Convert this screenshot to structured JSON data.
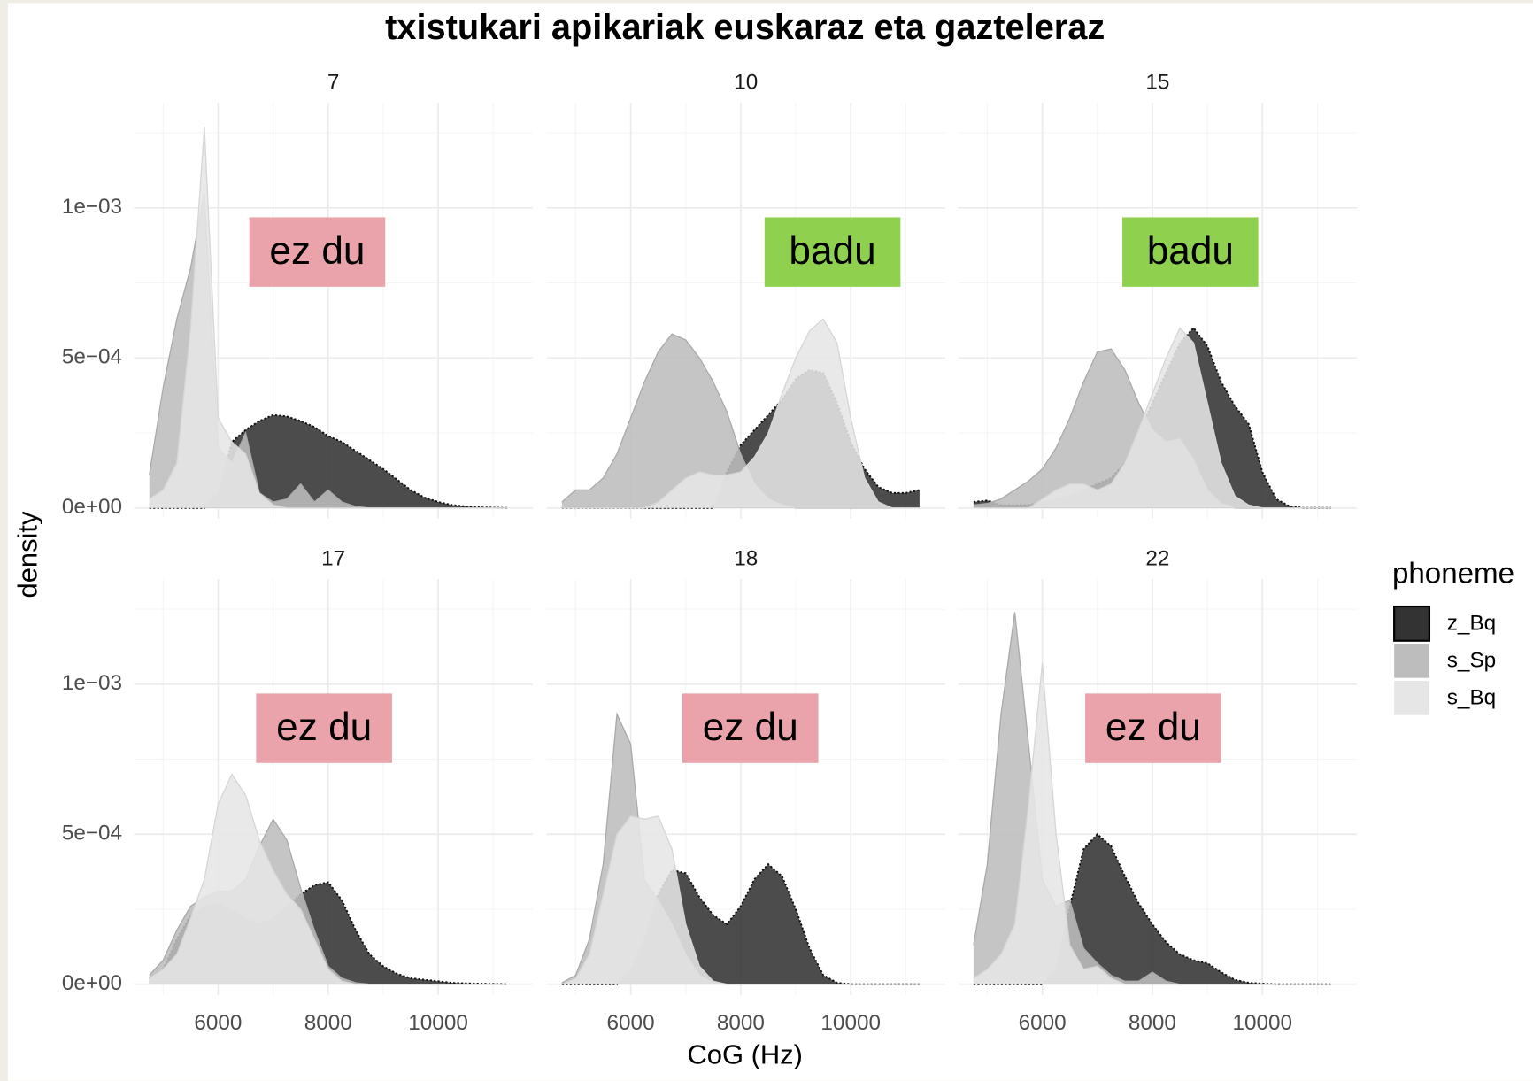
{
  "title": "txistukari apikariak euskaraz eta gazteleraz",
  "xlabel": "CoG (Hz)",
  "ylabel": "density",
  "legend_title": "phoneme",
  "chart_data": [
    {
      "type": "area",
      "title": "7",
      "annotation": {
        "text": "ez du",
        "color": "#eaa3aa"
      },
      "x": [
        4750,
        5000,
        5250,
        5500,
        5750,
        6000,
        6250,
        6500,
        6750,
        7000,
        7250,
        7500,
        7750,
        8000,
        8250,
        8500,
        8750,
        9000,
        9250,
        9500,
        9750,
        10000,
        10250,
        10500,
        10750,
        11000,
        11250
      ],
      "series": [
        {
          "name": "z_Bq",
          "color": "#333333",
          "values": [
            0,
            0,
            0,
            0,
            0,
            5e-05,
            0.00022,
            0.00026,
            0.00029,
            0.00031,
            0.000305,
            0.00029,
            0.00027,
            0.00024,
            0.00022,
            0.00019,
            0.00016,
            0.00013,
            9.5e-05,
            6e-05,
            3.5e-05,
            2e-05,
            1e-05,
            5e-06,
            2e-06,
            1e-06,
            0
          ]
        },
        {
          "name": "s_Sp",
          "color": "#bdbdbd",
          "values": [
            0.00011,
            0.0004,
            0.00063,
            0.0008,
            0.00105,
            0.0002,
            0.00015,
            0.00025,
            5e-05,
            2e-05,
            3e-05,
            8e-05,
            2e-05,
            6e-05,
            2e-05,
            5e-06,
            0,
            0,
            0,
            0,
            0,
            0,
            0,
            0,
            0,
            0,
            0
          ]
        },
        {
          "name": "s_Bq",
          "color": "#e6e6e6",
          "values": [
            3e-05,
            6e-05,
            0.00015,
            0.0006,
            0.00127,
            0.0003,
            0.00022,
            0.00018,
            5e-05,
            1e-05,
            0,
            0,
            0,
            0,
            0,
            0,
            0,
            0,
            0,
            0,
            0,
            0,
            0,
            0,
            0,
            0,
            0
          ]
        }
      ],
      "xlim": [
        4470,
        11720
      ],
      "ylim": [
        -3.5e-05,
        0.00135
      ],
      "xticks": [
        6000,
        8000,
        10000
      ],
      "xminor": [
        5000,
        7000,
        9000,
        11000
      ],
      "yticks": [
        {
          "value": 0,
          "label": "0e+00"
        },
        {
          "value": 0.0005,
          "label": "5e−04"
        },
        {
          "value": 0.001,
          "label": "1e−03"
        }
      ],
      "yminor": [
        0.00025,
        0.00075,
        0.00125
      ],
      "grid": true
    },
    {
      "type": "area",
      "title": "10",
      "annotation": {
        "text": "badu",
        "color": "#8fd14f"
      },
      "x": [
        4750,
        5000,
        5250,
        5500,
        5750,
        6000,
        6250,
        6500,
        6750,
        7000,
        7250,
        7500,
        7750,
        8000,
        8250,
        8500,
        8750,
        9000,
        9250,
        9500,
        9750,
        10000,
        10250,
        10500,
        10750,
        11000,
        11250
      ],
      "series": [
        {
          "name": "z_Bq",
          "color": "#333333",
          "values": [
            0,
            0,
            0,
            0,
            0,
            0,
            0,
            0,
            0,
            0,
            0,
            0,
            0.00012,
            0.00021,
            0.00026,
            0.00031,
            0.00036,
            0.00043,
            0.00046,
            0.00045,
            0.00035,
            0.00022,
            0.00013,
            7e-05,
            5e-05,
            5e-05,
            6e-05
          ]
        },
        {
          "name": "s_Sp",
          "color": "#bdbdbd",
          "values": [
            2e-05,
            6e-05,
            6e-05,
            0.0001,
            0.00018,
            0.0003,
            0.00042,
            0.00052,
            0.00058,
            0.00056,
            0.0005,
            0.00042,
            0.00032,
            0.00018,
            8e-05,
            3e-05,
            1e-05,
            0,
            0,
            0,
            0,
            0,
            0,
            0,
            0,
            0,
            0
          ]
        },
        {
          "name": "s_Bq",
          "color": "#e6e6e6",
          "values": [
            0,
            0,
            0,
            0,
            0,
            0,
            0,
            2e-05,
            6e-05,
            0.0001,
            0.00012,
            0.00011,
            0.00011,
            0.00012,
            0.00017,
            0.00025,
            0.00038,
            0.0005,
            0.00059,
            0.00063,
            0.00055,
            0.0003,
            0.0001,
            2e-05,
            0,
            0,
            0
          ]
        }
      ],
      "xlim": [
        4470,
        11720
      ],
      "ylim": [
        -3.5e-05,
        0.00135
      ],
      "xticks": [
        6000,
        8000,
        10000
      ],
      "xminor": [
        5000,
        7000,
        9000,
        11000
      ],
      "yticks": [
        {
          "value": 0,
          "label": "0e+00"
        },
        {
          "value": 0.0005,
          "label": "5e−04"
        },
        {
          "value": 0.001,
          "label": "1e−03"
        }
      ],
      "yminor": [
        0.00025,
        0.00075,
        0.00125
      ],
      "grid": true
    },
    {
      "type": "area",
      "title": "15",
      "annotation": {
        "text": "badu",
        "color": "#8fd14f"
      },
      "x": [
        4750,
        5000,
        5250,
        5500,
        5750,
        6000,
        6250,
        6500,
        6750,
        7000,
        7250,
        7500,
        7750,
        8000,
        8250,
        8500,
        8750,
        9000,
        9250,
        9500,
        9750,
        10000,
        10250,
        10500,
        10750,
        11000,
        11250
      ],
      "series": [
        {
          "name": "z_Bq",
          "color": "#333333",
          "values": [
            2e-05,
            2.5e-05,
            1e-05,
            1e-05,
            1e-05,
            2e-05,
            3e-05,
            4e-05,
            6e-05,
            8e-05,
            0.0001,
            0.00015,
            0.00025,
            0.00035,
            0.00045,
            0.00055,
            0.0006,
            0.00054,
            0.00042,
            0.00034,
            0.00028,
            0.00012,
            3e-05,
            5e-06,
            0,
            0,
            0
          ]
        },
        {
          "name": "s_Sp",
          "color": "#bdbdbd",
          "values": [
            1e-05,
            1.5e-05,
            3e-05,
            6e-05,
            9e-05,
            0.00013,
            0.0002,
            0.0003,
            0.00042,
            0.00052,
            0.00053,
            0.00046,
            0.00035,
            0.00026,
            0.00022,
            0.00023,
            0.00016,
            6e-05,
            1.5e-05,
            0,
            0,
            0,
            0,
            0,
            0,
            0,
            0
          ]
        },
        {
          "name": "s_Bq",
          "color": "#e6e6e6",
          "values": [
            0,
            0,
            0,
            0,
            0,
            3e-05,
            6e-05,
            8e-05,
            8e-05,
            6e-05,
            8e-05,
            0.00015,
            0.00026,
            0.00038,
            0.0005,
            0.0006,
            0.00055,
            0.00035,
            0.00015,
            4e-05,
            1e-05,
            0,
            0,
            0,
            0,
            0,
            0
          ]
        }
      ],
      "xlim": [
        4470,
        11720
      ],
      "ylim": [
        -3.5e-05,
        0.00135
      ],
      "xticks": [
        6000,
        8000,
        10000
      ],
      "xminor": [
        5000,
        7000,
        9000,
        11000
      ],
      "yticks": [
        {
          "value": 0,
          "label": "0e+00"
        },
        {
          "value": 0.0005,
          "label": "5e−04"
        },
        {
          "value": 0.001,
          "label": "1e−03"
        }
      ],
      "yminor": [
        0.00025,
        0.00075,
        0.00125
      ],
      "grid": true
    },
    {
      "type": "area",
      "title": "17",
      "annotation": {
        "text": "ez du",
        "color": "#eaa3aa"
      },
      "x": [
        4750,
        5000,
        5250,
        5500,
        5750,
        6000,
        6250,
        6500,
        6750,
        7000,
        7250,
        7500,
        7750,
        8000,
        8250,
        8500,
        8750,
        9000,
        9250,
        9500,
        9750,
        10000,
        10250,
        10500,
        10750,
        11000,
        11250
      ],
      "series": [
        {
          "name": "z_Bq",
          "color": "#333333",
          "values": [
            2e-05,
            5e-05,
            0.00015,
            0.00023,
            0.00026,
            0.00027,
            0.00025,
            0.00022,
            0.0002,
            0.00022,
            0.00026,
            0.0003,
            0.00033,
            0.00034,
            0.00028,
            0.00018,
            0.0001,
            6e-05,
            3.5e-05,
            2e-05,
            1.5e-05,
            1e-05,
            5e-06,
            3e-06,
            2e-06,
            1e-06,
            0
          ]
        },
        {
          "name": "s_Sp",
          "color": "#bdbdbd",
          "values": [
            3e-05,
            8e-05,
            0.00018,
            0.00026,
            0.00029,
            0.00031,
            0.00031,
            0.00035,
            0.00046,
            0.00055,
            0.00048,
            0.00032,
            0.00018,
            6e-05,
            2e-05,
            5e-06,
            0,
            0,
            0,
            0,
            0,
            0,
            0,
            0,
            0,
            0,
            0
          ]
        },
        {
          "name": "s_Bq",
          "color": "#e6e6e6",
          "values": [
            2e-05,
            5e-05,
            0.0001,
            0.00022,
            0.00035,
            0.0006,
            0.0007,
            0.00063,
            0.00048,
            0.00038,
            0.0003,
            0.00025,
            0.00015,
            5e-05,
            1e-05,
            0,
            0,
            0,
            0,
            0,
            0,
            0,
            0,
            0,
            0,
            0,
            0
          ]
        }
      ],
      "xlim": [
        4470,
        11720
      ],
      "ylim": [
        -3.5e-05,
        0.00135
      ],
      "xticks": [
        6000,
        8000,
        10000
      ],
      "xminor": [
        5000,
        7000,
        9000,
        11000
      ],
      "yticks": [
        {
          "value": 0,
          "label": "0e+00"
        },
        {
          "value": 0.0005,
          "label": "5e−04"
        },
        {
          "value": 0.001,
          "label": "1e−03"
        }
      ],
      "yminor": [
        0.00025,
        0.00075,
        0.00125
      ],
      "grid": true
    },
    {
      "type": "area",
      "title": "18",
      "annotation": {
        "text": "ez du",
        "color": "#eaa3aa"
      },
      "x": [
        4750,
        5000,
        5250,
        5500,
        5750,
        6000,
        6250,
        6500,
        6750,
        7000,
        7250,
        7500,
        7750,
        8000,
        8250,
        8500,
        8750,
        9000,
        9250,
        9500,
        9750,
        10000,
        10250,
        10500,
        10750,
        11000,
        11250
      ],
      "series": [
        {
          "name": "z_Bq",
          "color": "#333333",
          "values": [
            0,
            0,
            0,
            0,
            0,
            5e-05,
            0.00015,
            0.0003,
            0.00038,
            0.00037,
            0.00029,
            0.00023,
            0.0002,
            0.00026,
            0.00035,
            0.0004,
            0.00036,
            0.00025,
            0.00012,
            3e-05,
            5e-06,
            0,
            0,
            0,
            0,
            0,
            0
          ]
        },
        {
          "name": "s_Sp",
          "color": "#bdbdbd",
          "values": [
            5e-06,
            3e-05,
            0.00015,
            0.0004,
            0.0009,
            0.0008,
            0.00035,
            0.00028,
            0.0002,
            0.0001,
            3e-05,
            5e-06,
            0,
            0,
            0,
            0,
            0,
            0,
            0,
            0,
            0,
            0,
            0,
            0,
            0,
            0,
            0
          ]
        },
        {
          "name": "s_Bq",
          "color": "#e6e6e6",
          "values": [
            0,
            2e-05,
            0.0001,
            0.0003,
            0.0005,
            0.00056,
            0.00055,
            0.00056,
            0.00045,
            0.0002,
            6e-05,
            1e-05,
            0,
            0,
            0,
            0,
            0,
            0,
            0,
            0,
            0,
            0,
            0,
            0,
            0,
            0,
            0
          ]
        }
      ],
      "xlim": [
        4470,
        11720
      ],
      "ylim": [
        -3.5e-05,
        0.00135
      ],
      "xticks": [
        6000,
        8000,
        10000
      ],
      "xminor": [
        5000,
        7000,
        9000,
        11000
      ],
      "yticks": [
        {
          "value": 0,
          "label": "0e+00"
        },
        {
          "value": 0.0005,
          "label": "5e−04"
        },
        {
          "value": 0.001,
          "label": "1e−03"
        }
      ],
      "yminor": [
        0.00025,
        0.00075,
        0.00125
      ],
      "grid": true
    },
    {
      "type": "area",
      "title": "22",
      "annotation": {
        "text": "ez du",
        "color": "#eaa3aa"
      },
      "x": [
        4750,
        5000,
        5250,
        5500,
        5750,
        6000,
        6250,
        6500,
        6750,
        7000,
        7250,
        7500,
        7750,
        8000,
        8250,
        8500,
        8750,
        9000,
        9250,
        9500,
        9750,
        10000,
        10250,
        10500,
        10750,
        11000,
        11250
      ],
      "series": [
        {
          "name": "z_Bq",
          "color": "#333333",
          "values": [
            0,
            0,
            0,
            0,
            0,
            0,
            5e-05,
            0.00026,
            0.00045,
            0.0005,
            0.00046,
            0.00036,
            0.00027,
            0.0002,
            0.00014,
            0.0001,
            8e-05,
            7e-05,
            4e-05,
            1.5e-05,
            5e-06,
            2e-06,
            0,
            0,
            0,
            0,
            0
          ]
        },
        {
          "name": "s_Sp",
          "color": "#bdbdbd",
          "values": [
            0.00013,
            0.0004,
            0.0009,
            0.00124,
            0.0008,
            0.00035,
            0.00026,
            0.00028,
            0.00012,
            7e-05,
            3e-05,
            1e-05,
            1e-05,
            4e-05,
            1e-05,
            0,
            0,
            0,
            0,
            0,
            0,
            0,
            0,
            0,
            0,
            0,
            0
          ]
        },
        {
          "name": "s_Bq",
          "color": "#e6e6e6",
          "values": [
            2e-05,
            5e-05,
            0.0001,
            0.0002,
            0.0006,
            0.00107,
            0.0005,
            0.00013,
            5e-05,
            6e-05,
            2e-05,
            0,
            0,
            0,
            0,
            0,
            0,
            0,
            0,
            0,
            0,
            0,
            0,
            0,
            0,
            0,
            0
          ]
        }
      ],
      "xlim": [
        4470,
        11720
      ],
      "ylim": [
        -3.5e-05,
        0.00135
      ],
      "xticks": [
        6000,
        8000,
        10000
      ],
      "xminor": [
        5000,
        7000,
        9000,
        11000
      ],
      "yticks": [
        {
          "value": 0,
          "label": "0e+00"
        },
        {
          "value": 0.0005,
          "label": "5e−04"
        },
        {
          "value": 0.001,
          "label": "1e−03"
        }
      ],
      "yminor": [
        0.00025,
        0.00075,
        0.00125
      ],
      "grid": true
    }
  ]
}
